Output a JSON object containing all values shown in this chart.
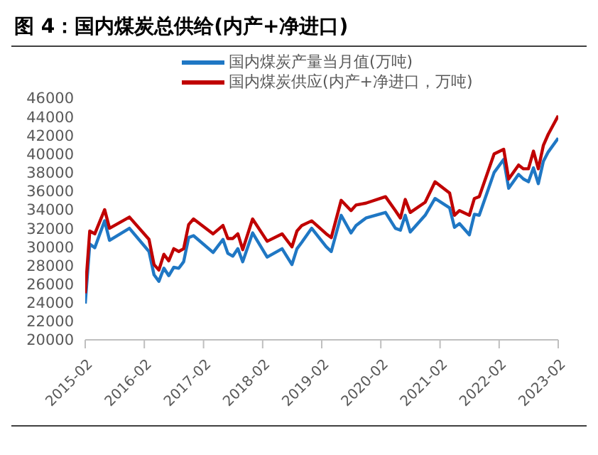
{
  "chart_data": {
    "type": "line",
    "title": "图 4：国内煤炭总供给(内产+净进口)",
    "x": [
      "2015-02",
      "2015-03",
      "2015-04",
      "2015-06",
      "2015-07",
      "2015-11",
      "2016-03",
      "2016-04",
      "2016-05",
      "2016-06",
      "2016-07",
      "2016-08",
      "2016-09",
      "2016-10",
      "2016-11",
      "2016-12",
      "2017-04",
      "2017-06",
      "2017-07",
      "2017-08",
      "2017-09",
      "2017-10",
      "2017-12",
      "2018-03",
      "2018-06",
      "2018-08",
      "2018-09",
      "2018-10",
      "2018-12",
      "2019-03",
      "2019-04",
      "2019-06",
      "2019-08",
      "2019-09",
      "2019-11",
      "2020-03",
      "2020-05",
      "2020-06",
      "2020-07",
      "2020-08",
      "2020-11",
      "2021-01",
      "2021-04",
      "2021-05",
      "2021-06",
      "2021-08",
      "2021-09",
      "2021-10",
      "2022-01",
      "2022-03",
      "2022-04",
      "2022-06",
      "2022-07",
      "2022-08",
      "2022-09",
      "2022-10",
      "2022-11",
      "2022-12",
      "2023-02"
    ],
    "series": [
      {
        "name": "国内煤炭产量当月值(万吨)",
        "color": "#1f77c4",
        "values": [
          23900,
          30300,
          29900,
          32800,
          30700,
          32000,
          29500,
          27000,
          26300,
          27700,
          26900,
          27800,
          27700,
          28400,
          31000,
          31200,
          29400,
          30800,
          29300,
          29000,
          29800,
          28400,
          31500,
          28900,
          29800,
          28100,
          29800,
          30500,
          32000,
          30000,
          29500,
          33400,
          31500,
          32300,
          33100,
          33700,
          32000,
          31800,
          33400,
          31600,
          33400,
          35200,
          34200,
          32100,
          32500,
          31300,
          33500,
          33400,
          38000,
          39400,
          36300,
          37800,
          37300,
          37000,
          38500,
          36800,
          39200,
          40200,
          41700
        ]
      },
      {
        "name": "国内煤炭供应(内产+净进口，万吨)",
        "color": "#c00000",
        "values": [
          25000,
          31700,
          31400,
          34000,
          32000,
          33200,
          30800,
          28100,
          27500,
          29200,
          28500,
          29800,
          29500,
          29800,
          32400,
          33000,
          31400,
          32300,
          30900,
          30900,
          31400,
          29700,
          33000,
          30600,
          31400,
          30000,
          31700,
          32300,
          32800,
          31400,
          31000,
          35000,
          33900,
          34500,
          34700,
          35400,
          33900,
          33100,
          35100,
          33700,
          34800,
          37000,
          35800,
          33400,
          33900,
          33400,
          35200,
          35400,
          40000,
          40500,
          37300,
          38800,
          38400,
          38400,
          40300,
          38400,
          40900,
          42100,
          44100
        ]
      }
    ],
    "xlim": [
      "2015-02",
      "2023-02"
    ],
    "xticks": [
      "2015-02",
      "2016-02",
      "2017-02",
      "2018-02",
      "2019-02",
      "2020-02",
      "2021-02",
      "2022-02",
      "2023-02"
    ],
    "ylim": [
      20000,
      46000
    ],
    "yticks": [
      20000,
      22000,
      24000,
      26000,
      28000,
      30000,
      32000,
      34000,
      36000,
      38000,
      40000,
      42000,
      44000,
      46000
    ],
    "grid": false,
    "legend": "top",
    "marker": "none",
    "line_style": "solid"
  }
}
